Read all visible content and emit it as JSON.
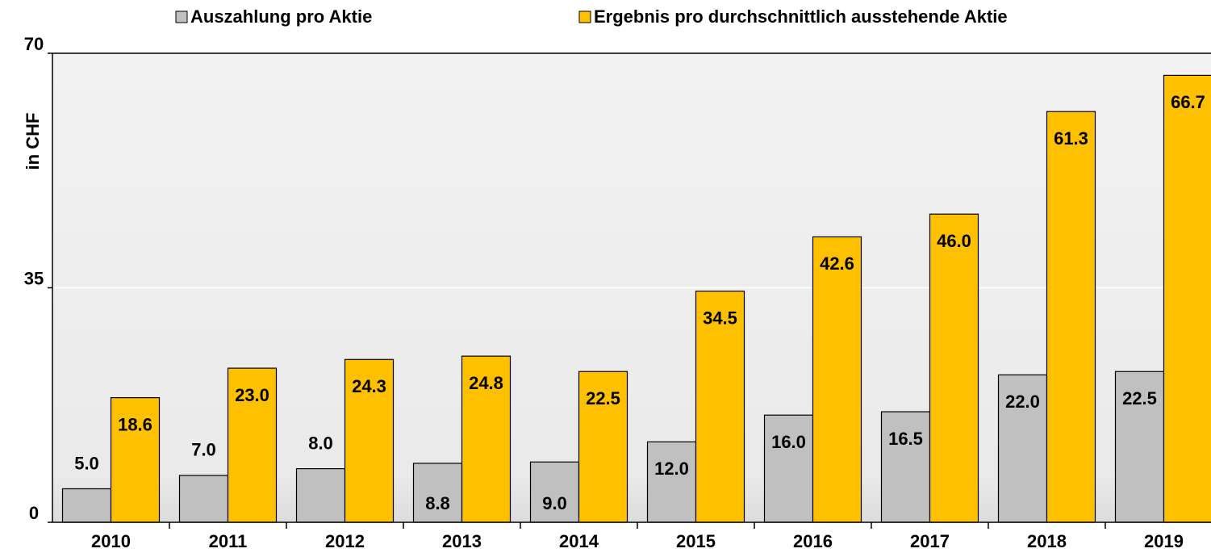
{
  "chart_data": {
    "type": "bar",
    "y_label": "in CHF",
    "categories": [
      "2010",
      "2011",
      "2012",
      "2013",
      "2014",
      "2015",
      "2016",
      "2017",
      "2018",
      "2019"
    ],
    "series": [
      {
        "name": "Auszahlung pro Aktie",
        "color": "#c0c0c0",
        "values": [
          5.0,
          7.0,
          8.0,
          8.8,
          9.0,
          12.0,
          16.0,
          16.5,
          22.0,
          22.5
        ],
        "value_labels": [
          "5.0",
          "7.0",
          "8.0",
          "8.8",
          "9.0",
          "12.0",
          "16.0",
          "16.5",
          "22.0",
          "22.5"
        ]
      },
      {
        "name": "Ergebnis pro durchschnittlich ausstehende Aktie",
        "color": "#ffc000",
        "values": [
          18.6,
          23.0,
          24.3,
          24.8,
          22.5,
          34.5,
          42.6,
          46.0,
          61.3,
          66.7
        ],
        "value_labels": [
          "18.6",
          "23.0",
          "24.3",
          "24.8",
          "22.5",
          "34.5",
          "42.6",
          "46.0",
          "61.3",
          "66.7"
        ]
      }
    ],
    "ylim": [
      0,
      70
    ],
    "yticks": [
      0,
      35,
      70
    ],
    "grid": true,
    "legend": "top"
  }
}
